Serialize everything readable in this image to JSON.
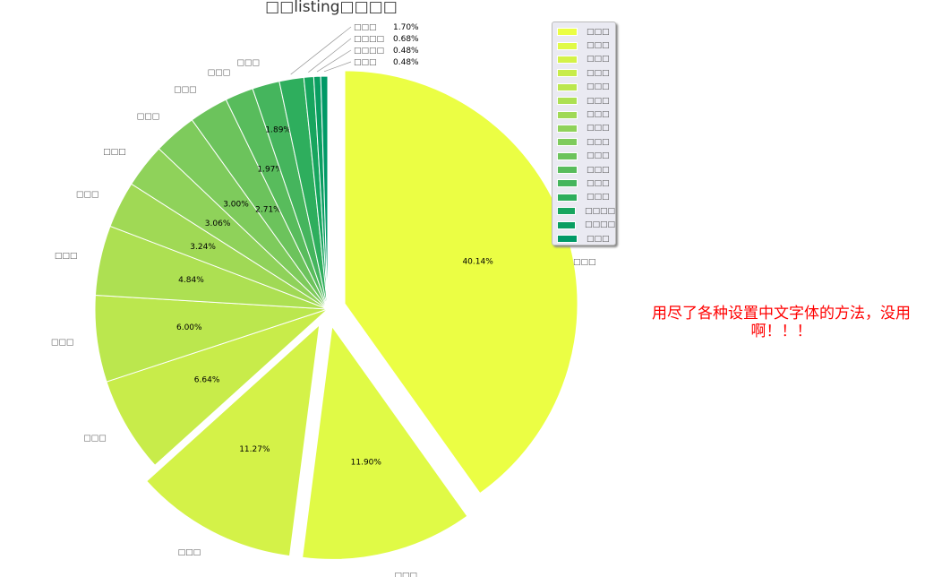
{
  "chart_data": {
    "type": "pie",
    "title": "□□listing□□□□",
    "labels": [
      "□□□",
      "□□□",
      "□□□",
      "□□□",
      "□□□",
      "□□□",
      "□□□",
      "□□□",
      "□□□",
      "□□□",
      "□□□",
      "□□□",
      "□□□",
      "□□□□",
      "□□□□",
      "□□□"
    ],
    "values": [
      40.14,
      11.9,
      11.27,
      6.64,
      6.0,
      4.84,
      3.24,
      3.06,
      3.0,
      2.71,
      1.97,
      1.89,
      1.7,
      0.68,
      0.48,
      0.48
    ],
    "exploded": [
      true,
      true,
      true,
      false,
      false,
      false,
      false,
      false,
      false,
      false,
      false,
      false,
      false,
      false,
      false,
      false
    ],
    "start_angle": 90,
    "direction": "clockwise",
    "colors": [
      "#ebfe44",
      "#e0fa46",
      "#d4f248",
      "#c8ec4a",
      "#bbe74e",
      "#ade052",
      "#a0d955",
      "#8fd25a",
      "#7ecb5c",
      "#6cc35c",
      "#58bc5c",
      "#45b55d",
      "#2eae5d",
      "#17a55e",
      "#0a9e61",
      "#009966"
    ],
    "legend_position": "upper-right"
  },
  "annotation": "用尽了各种设置中文字体的方法，没用啊！！！"
}
